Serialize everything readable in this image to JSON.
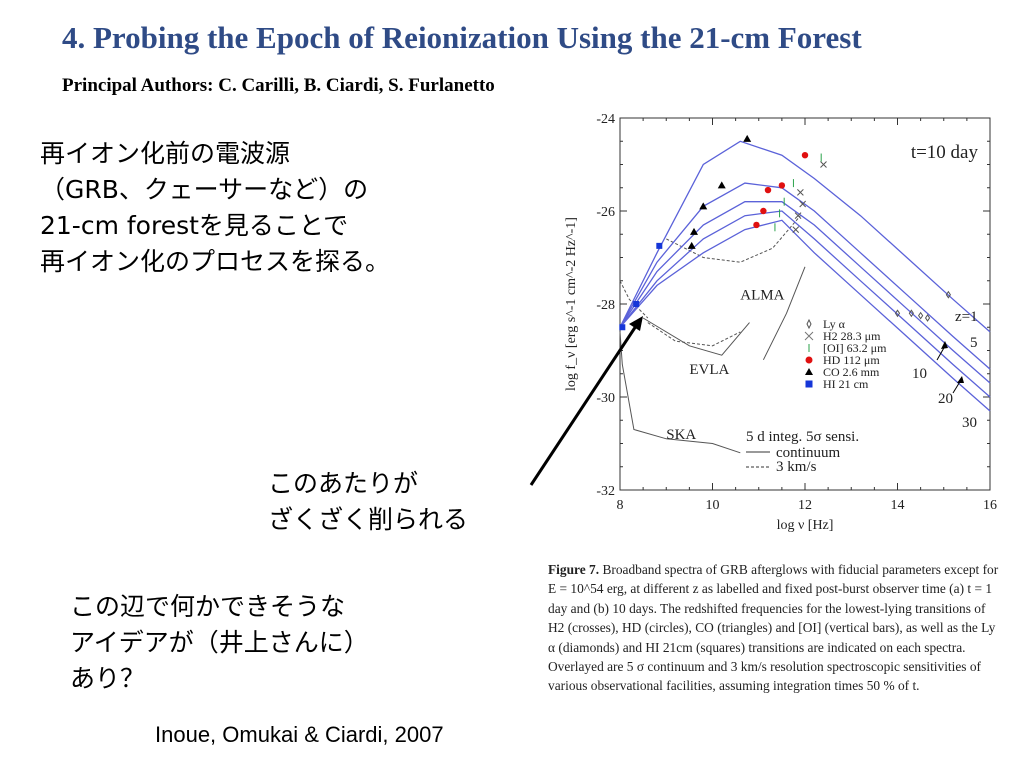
{
  "slide": {
    "title": "4. Probing the Epoch of Reionization Using the 21-cm Forest",
    "authors": "Principal Authors: C. Carilli, B. Ciardi, S. Furlanetto",
    "block1": [
      "再イオン化前の電波源",
      "（GRB、クェーサーなど）の",
      "21-cm forestを見ることで",
      "再イオン化のプロセスを探る。"
    ],
    "block2": [
      "このあたりが",
      "ざくざく削られる"
    ],
    "block3": [
      "この辺で何かできそうな",
      "アイデアが（井上さんに）",
      "あり？"
    ],
    "citation": "Inoue, Omukai & Ciardi, 2007"
  },
  "caption": {
    "label": "Figure 7.",
    "text": "Broadband spectra of GRB afterglows with fiducial parameters except for E = 10^54 erg, at different z as labelled and fixed post-burst observer time (a) t = 1 day and (b) 10 days. The redshifted frequencies for the lowest-lying transitions of H2 (crosses), HD (circles), CO (triangles) and [OI] (vertical bars), as well as the Ly α (diamonds) and HI 21cm (squares) transitions are indicated on each spectra. Overlayed are 5 σ continuum and 3 km/s resolution spectroscopic sensitivities of various observational facilities, assuming integration times 50 % of t."
  },
  "chart_data": {
    "type": "line",
    "title": "t=10 day",
    "xlabel": "log ν [Hz]",
    "ylabel": "log f_ν [erg s^-1 cm^-2 Hz^-1]",
    "xlim": [
      8,
      16
    ],
    "ylim": [
      -32,
      -24
    ],
    "xticks": [
      "8",
      "10",
      "12",
      "14",
      "16"
    ],
    "yticks": [
      "-24",
      "-26",
      "-28",
      "-30",
      "-32"
    ],
    "series": [
      {
        "name": "z=1",
        "x": [
          8,
          8.8,
          9.8,
          10.6,
          11.5,
          12.2,
          13.2,
          14.2,
          15.2,
          16
        ],
        "y": [
          -28.5,
          -26.9,
          -25.0,
          -24.5,
          -24.8,
          -25.3,
          -26.1,
          -27.0,
          -27.9,
          -28.6
        ]
      },
      {
        "name": "5",
        "x": [
          8,
          8.8,
          9.8,
          10.7,
          11.5,
          12.2,
          13.2,
          14.2,
          15.2,
          16
        ],
        "y": [
          -28.5,
          -27.1,
          -25.9,
          -25.4,
          -25.5,
          -26.0,
          -26.9,
          -27.8,
          -28.7,
          -29.4
        ]
      },
      {
        "name": "10",
        "x": [
          8,
          8.8,
          9.8,
          10.7,
          11.5,
          12.2,
          13.2,
          14.2,
          15.2,
          16
        ],
        "y": [
          -28.5,
          -27.3,
          -26.3,
          -25.8,
          -25.8,
          -26.3,
          -27.2,
          -28.1,
          -29.0,
          -29.7
        ]
      },
      {
        "name": "20",
        "x": [
          8,
          8.8,
          9.8,
          10.7,
          11.5,
          12.2,
          13.2,
          14.2,
          15.2,
          16
        ],
        "y": [
          -28.5,
          -27.5,
          -26.6,
          -26.1,
          -26.0,
          -26.6,
          -27.5,
          -28.4,
          -29.3,
          -30.0
        ]
      },
      {
        "name": "30",
        "x": [
          8,
          8.8,
          9.8,
          10.7,
          11.5,
          12.2,
          13.2,
          14.2,
          15.2,
          16
        ],
        "y": [
          -28.5,
          -27.6,
          -26.9,
          -26.4,
          -26.2,
          -26.9,
          -27.8,
          -28.7,
          -29.6,
          -30.3
        ]
      }
    ],
    "markers": {
      "HI 21 cm": [
        [
          8.05,
          -28.5
        ],
        [
          8.35,
          -28.0
        ],
        [
          8.85,
          -26.75
        ]
      ],
      "CO 2.6 mm": [
        [
          10.75,
          -24.45
        ],
        [
          10.2,
          -25.45
        ],
        [
          9.8,
          -25.9
        ],
        [
          9.6,
          -26.45
        ],
        [
          9.55,
          -26.75
        ]
      ],
      "HD 112 μm": [
        [
          12.0,
          -24.8
        ],
        [
          11.5,
          -25.45
        ],
        [
          11.2,
          -25.55
        ],
        [
          11.1,
          -26.0
        ],
        [
          10.95,
          -26.3
        ]
      ]
    },
    "legend": [
      "Ly α",
      "H2 28.3 μm",
      "[OI] 63.2 μm",
      "HD 112 μm",
      "CO 2.6 mm",
      "HI 21 cm"
    ],
    "legend_note": [
      "5 d integ. 5σ sensi.",
      "continuum",
      "3 km/s"
    ],
    "facilities": [
      "ALMA",
      "EVLA",
      "SKA"
    ],
    "series_labels": [
      "z=1",
      "5",
      "10",
      "20",
      "30"
    ],
    "sensitivity_continuum": {
      "SKA": {
        "x": [
          8.0,
          8.05,
          8.3,
          9.0,
          10.0,
          10.6
        ],
        "y": [
          -28.6,
          -29.3,
          -30.7,
          -30.9,
          -31.0,
          -31.2
        ]
      },
      "EVLA": {
        "x": [
          8.5,
          9.5,
          10.2,
          10.8
        ],
        "y": [
          -28.3,
          -28.9,
          -29.1,
          -28.4
        ]
      },
      "ALMA": {
        "x": [
          11.1,
          11.6,
          12.0
        ],
        "y": [
          -29.2,
          -28.2,
          -27.2
        ]
      }
    },
    "sensitivity_3kms": {
      "SKA": {
        "x": [
          8.0,
          8.2,
          8.6
        ],
        "y": [
          -27.5,
          -27.9,
          -28.3
        ]
      },
      "EVLA": {
        "x": [
          8.6,
          9.2,
          10.0,
          10.6
        ],
        "y": [
          -28.4,
          -28.8,
          -28.9,
          -28.6
        ]
      },
      "ALMA": {
        "x": [
          9.0,
          9.8,
          10.6,
          11.3,
          11.9
        ],
        "y": [
          -26.6,
          -27.0,
          -27.1,
          -26.8,
          -26.1
        ]
      }
    }
  }
}
